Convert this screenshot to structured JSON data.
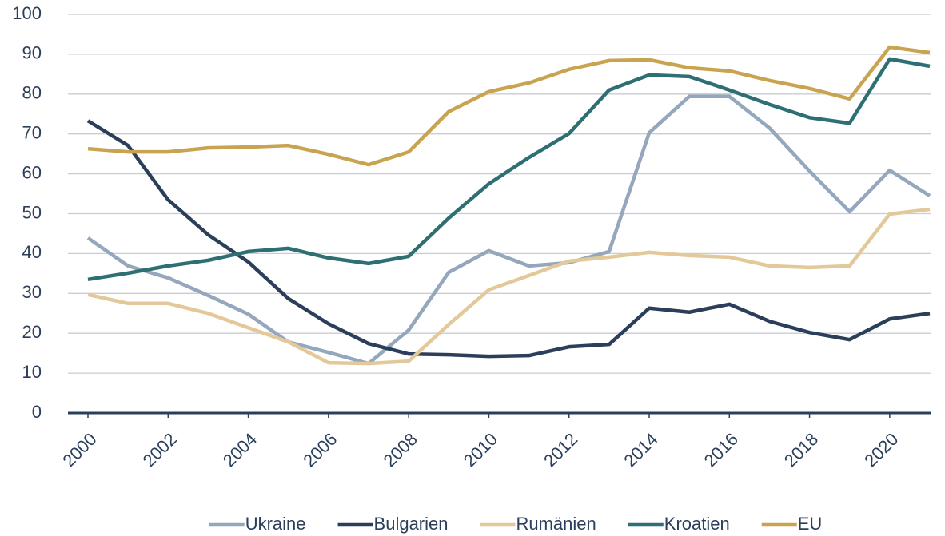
{
  "chart_data": {
    "type": "line",
    "x": [
      2000,
      2001,
      2002,
      2003,
      2004,
      2005,
      2006,
      2007,
      2008,
      2009,
      2010,
      2011,
      2012,
      2013,
      2014,
      2015,
      2016,
      2017,
      2018,
      2019,
      2020,
      2021
    ],
    "xlim": [
      2000,
      2021
    ],
    "xticks": [
      2000,
      2002,
      2004,
      2006,
      2008,
      2010,
      2012,
      2014,
      2016,
      2018,
      2020
    ],
    "ylim": [
      0,
      100
    ],
    "yticks": [
      0,
      10,
      20,
      30,
      40,
      50,
      60,
      70,
      80,
      90,
      100
    ],
    "grid": true,
    "legend": "bottom",
    "series": [
      {
        "name": "Ukraine",
        "color": "#94a7bd",
        "values": [
          43.9,
          36.9,
          33.9,
          29.5,
          24.8,
          17.8,
          15.2,
          12.4,
          20.8,
          35.3,
          40.7,
          36.9,
          37.7,
          40.5,
          70.3,
          79.4,
          79.4,
          71.5,
          60.7,
          50.5,
          60.9,
          54.5
        ]
      },
      {
        "name": "Bulgarien",
        "color": "#2b3f5a",
        "values": [
          73.3,
          67.1,
          53.5,
          44.7,
          37.9,
          28.7,
          22.4,
          17.4,
          14.8,
          14.6,
          14.2,
          14.4,
          16.6,
          17.2,
          26.3,
          25.3,
          27.3,
          23.0,
          20.2,
          18.4,
          23.6,
          25.0
        ]
      },
      {
        "name": "Rumänien",
        "color": "#e3c99a",
        "values": [
          29.7,
          27.5,
          27.5,
          25.0,
          21.4,
          17.8,
          12.6,
          12.4,
          13.0,
          22.2,
          30.9,
          34.5,
          38.1,
          39.1,
          40.3,
          39.5,
          39.1,
          36.9,
          36.5,
          36.9,
          49.9,
          51.1
        ]
      },
      {
        "name": "Kroatien",
        "color": "#2e6f73",
        "values": [
          33.5,
          35.1,
          36.9,
          38.3,
          40.5,
          41.3,
          38.9,
          37.5,
          39.3,
          48.9,
          57.5,
          64.1,
          70.1,
          81.0,
          84.8,
          84.4,
          81.0,
          77.4,
          74.1,
          72.7,
          88.8,
          87.0
        ]
      },
      {
        "name": "EU",
        "color": "#c9a450",
        "values": [
          66.3,
          65.5,
          65.5,
          66.5,
          66.7,
          67.1,
          64.9,
          62.3,
          65.5,
          75.6,
          80.6,
          82.8,
          86.2,
          88.4,
          88.6,
          86.6,
          85.8,
          83.4,
          81.4,
          78.8,
          91.8,
          90.4
        ]
      }
    ]
  }
}
